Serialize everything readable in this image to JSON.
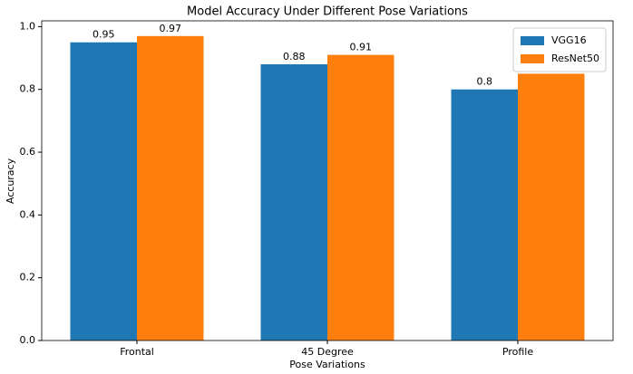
{
  "chart_data": {
    "type": "bar",
    "title": "Model Accuracy Under Different Pose Variations",
    "x_label": "Pose Variations",
    "y_label": "Accuracy",
    "categories": [
      "Frontal",
      "45 Degree",
      "Profile"
    ],
    "series": [
      {
        "name": "VGG16",
        "color": "#1f77b4",
        "values": [
          0.95,
          0.88,
          0.8
        ]
      },
      {
        "name": "ResNet50",
        "color": "#ff7f0e",
        "values": [
          0.97,
          0.91,
          0.85
        ]
      }
    ],
    "ylim": [
      0,
      1.0185
    ],
    "yticks": [
      {
        "value": 0,
        "label": "0.0"
      },
      0.2,
      0.4,
      0.6,
      0.8,
      {
        "value": 1,
        "label": "1.0"
      }
    ],
    "legend": "upper right"
  }
}
